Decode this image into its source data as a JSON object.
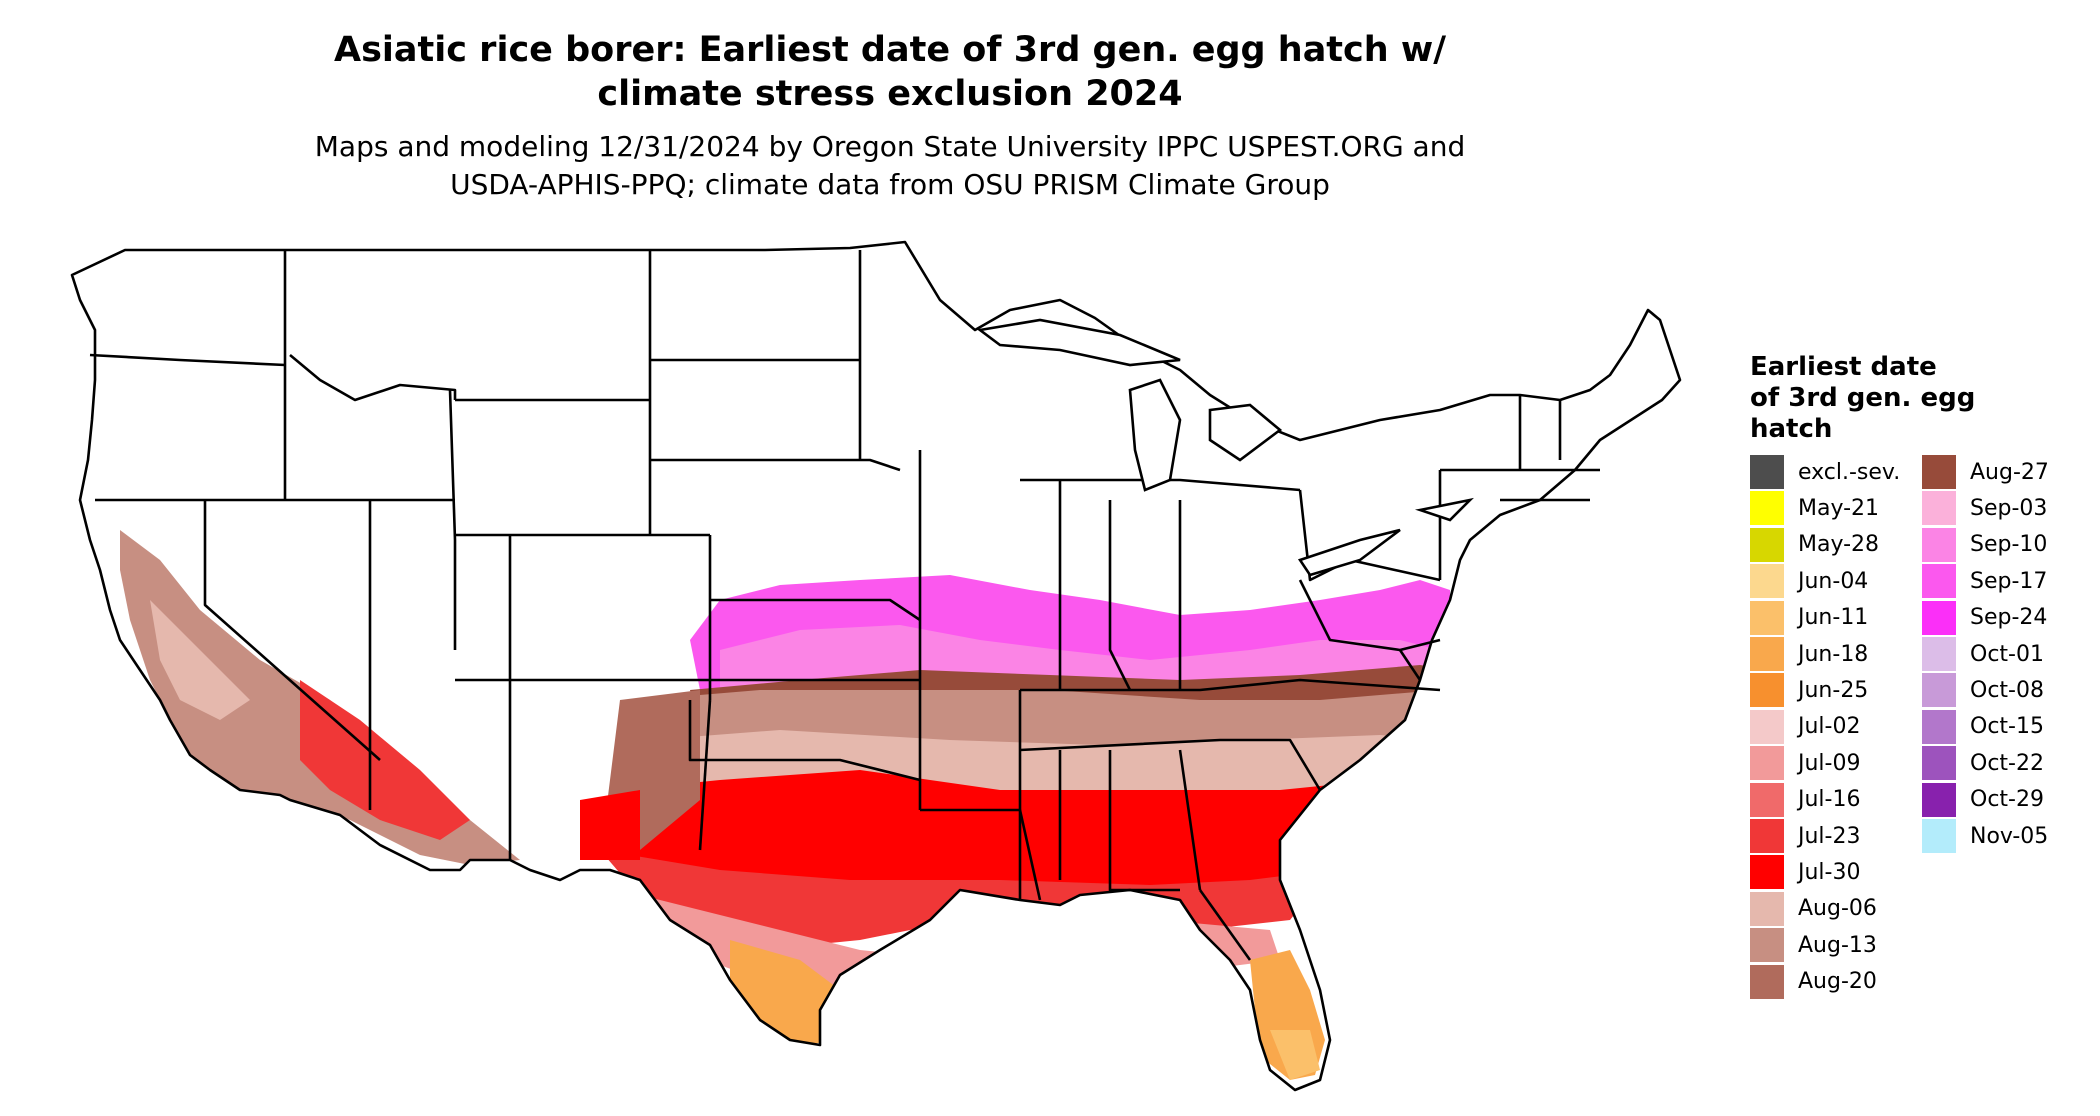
{
  "title_lines": [
    "Asiatic rice borer: Earliest date of 3rd gen. egg hatch w/",
    "climate stress exclusion 2024"
  ],
  "subtitle_lines": [
    "Maps and modeling 12/31/2024 by Oregon State University IPPC USPEST.ORG and",
    "USDA-APHIS-PPQ; climate data from OSU PRISM Climate Group"
  ],
  "legend": {
    "title_lines": [
      "Earliest date",
      "of 3rd gen. egg",
      "hatch"
    ],
    "items": [
      {
        "label": "excl.-sev.",
        "color": "#4d4d4d"
      },
      {
        "label": "May-21",
        "color": "#ffff00"
      },
      {
        "label": "May-28",
        "color": "#d7d700"
      },
      {
        "label": "Jun-04",
        "color": "#fcd88e"
      },
      {
        "label": "Jun-11",
        "color": "#fbc06a"
      },
      {
        "label": "Jun-18",
        "color": "#f9a84c"
      },
      {
        "label": "Jun-25",
        "color": "#f7902e"
      },
      {
        "label": "Jul-02",
        "color": "#f4c9c9"
      },
      {
        "label": "Jul-09",
        "color": "#f29a9a"
      },
      {
        "label": "Jul-16",
        "color": "#f06a6a"
      },
      {
        "label": "Jul-23",
        "color": "#f03737"
      },
      {
        "label": "Jul-30",
        "color": "#ff0000"
      },
      {
        "label": "Aug-06",
        "color": "#e5b8ad"
      },
      {
        "label": "Aug-13",
        "color": "#c78f82"
      },
      {
        "label": "Aug-20",
        "color": "#b06b5c"
      },
      {
        "label": "Aug-27",
        "color": "#974b3a"
      },
      {
        "label": "Sep-03",
        "color": "#fbb1da"
      },
      {
        "label": "Sep-10",
        "color": "#fb84e5"
      },
      {
        "label": "Sep-17",
        "color": "#fb58ee"
      },
      {
        "label": "Sep-24",
        "color": "#fb2ff8"
      },
      {
        "label": "Oct-01",
        "color": "#dcbde8"
      },
      {
        "label": "Oct-08",
        "color": "#c89ad8"
      },
      {
        "label": "Oct-15",
        "color": "#b277cb"
      },
      {
        "label": "Oct-22",
        "color": "#9d53bd"
      },
      {
        "label": "Oct-29",
        "color": "#8821ad"
      },
      {
        "label": "Nov-05",
        "color": "#b3ecfb"
      }
    ]
  }
}
